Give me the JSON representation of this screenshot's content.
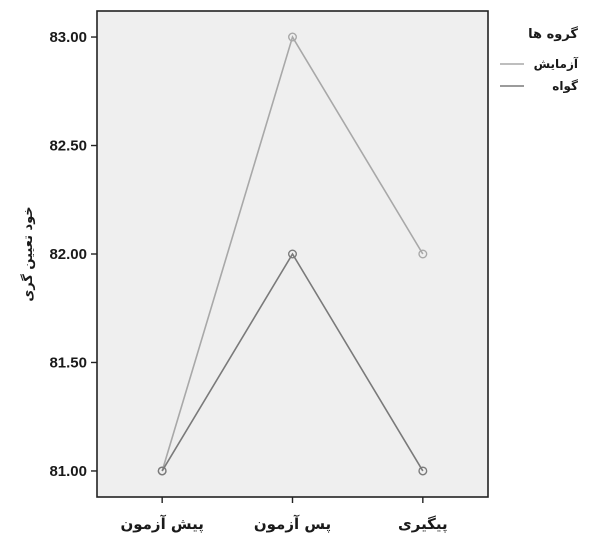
{
  "chart_data": {
    "type": "line",
    "categories": [
      "پیش آزمون",
      "پس آزمون",
      "پیگیری"
    ],
    "series": [
      {
        "name": "آزمایش",
        "values": [
          81.0,
          83.0,
          82.0
        ],
        "color": "#a8a8a8"
      },
      {
        "name": "گواه",
        "values": [
          81.0,
          82.0,
          81.0
        ],
        "color": "#7a7a7a"
      }
    ],
    "y_ticks": [
      "81.00",
      "81.50",
      "82.00",
      "82.50",
      "83.00"
    ],
    "ylim": [
      80.88,
      83.12
    ],
    "ylabel": "خود تعیین گری",
    "xlabel": "",
    "legend_title": "گروه ها",
    "legend_position": "top-right",
    "grid": false,
    "plot_background": "#efefef"
  }
}
